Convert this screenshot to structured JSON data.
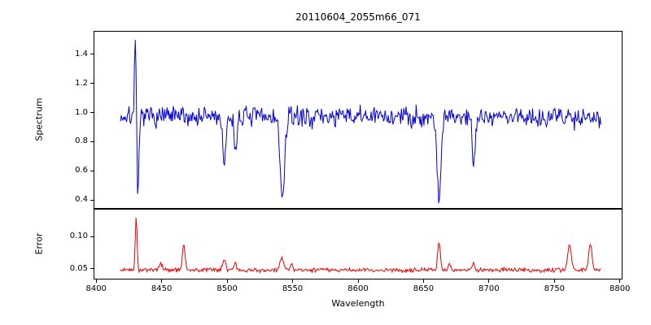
{
  "chart_data": {
    "type": "line",
    "title": "20110604_2055m66_071",
    "xlabel": "Wavelength",
    "xlim": [
      8398,
      8802
    ],
    "x_range": [
      8418,
      8786
    ],
    "x_ticks": [
      8400,
      8450,
      8500,
      8550,
      8600,
      8650,
      8700,
      8750,
      8800
    ],
    "x_tick_labels": [
      "8400",
      "8450",
      "8500",
      "8550",
      "8600",
      "8650",
      "8700",
      "8750",
      "8800"
    ],
    "grid": false,
    "legend": "none",
    "seed": 7,
    "n_points": 620,
    "subplots": [
      {
        "name": "spectrum",
        "ylabel": "Spectrum",
        "color": "#0000dd",
        "ylim": [
          0.34,
          1.56
        ],
        "yticks": [
          0.4,
          0.6,
          0.8,
          1.0,
          1.2,
          1.4
        ],
        "ytick_labels": [
          "0.4",
          "0.6",
          "0.8",
          "1.0",
          "1.2",
          "1.4"
        ],
        "baseline": 0.972,
        "noise_amp": 0.105,
        "features": [
          {
            "x": 8429.3,
            "amp": 0.58,
            "width": 0.9
          },
          {
            "x": 8431.4,
            "amp": -0.58,
            "width": 1.1
          },
          {
            "x": 8497.5,
            "amp": -0.38,
            "width": 1.6
          },
          {
            "x": 8506.0,
            "amp": -0.25,
            "width": 1.4
          },
          {
            "x": 8542.0,
            "amp": -0.58,
            "width": 2.4
          },
          {
            "x": 8662.0,
            "amp": -0.56,
            "width": 2.1
          },
          {
            "x": 8688.5,
            "amp": -0.34,
            "width": 1.4
          }
        ]
      },
      {
        "name": "error",
        "ylabel": "Error",
        "color": "#ee0000",
        "ylim": [
          0.033,
          0.143
        ],
        "yticks": [
          0.05,
          0.1
        ],
        "ytick_labels": [
          "0.05",
          "0.10"
        ],
        "baseline": 0.047,
        "noise_amp": 0.005,
        "features": [
          {
            "x": 8430.0,
            "amp": 0.083,
            "width": 1.0
          },
          {
            "x": 8449.0,
            "amp": 0.012,
            "width": 1.4
          },
          {
            "x": 8466.5,
            "amp": 0.04,
            "width": 1.4
          },
          {
            "x": 8497.5,
            "amp": 0.018,
            "width": 1.4
          },
          {
            "x": 8506.0,
            "amp": 0.012,
            "width": 1.2
          },
          {
            "x": 8541.5,
            "amp": 0.019,
            "width": 2.0
          },
          {
            "x": 8549.0,
            "amp": 0.01,
            "width": 1.2
          },
          {
            "x": 8662.0,
            "amp": 0.047,
            "width": 1.4
          },
          {
            "x": 8670.0,
            "amp": 0.009,
            "width": 1.0
          },
          {
            "x": 8688.5,
            "amp": 0.012,
            "width": 1.2
          },
          {
            "x": 8762.0,
            "amp": 0.04,
            "width": 1.9
          },
          {
            "x": 8778.0,
            "amp": 0.043,
            "width": 1.7
          }
        ]
      }
    ]
  }
}
